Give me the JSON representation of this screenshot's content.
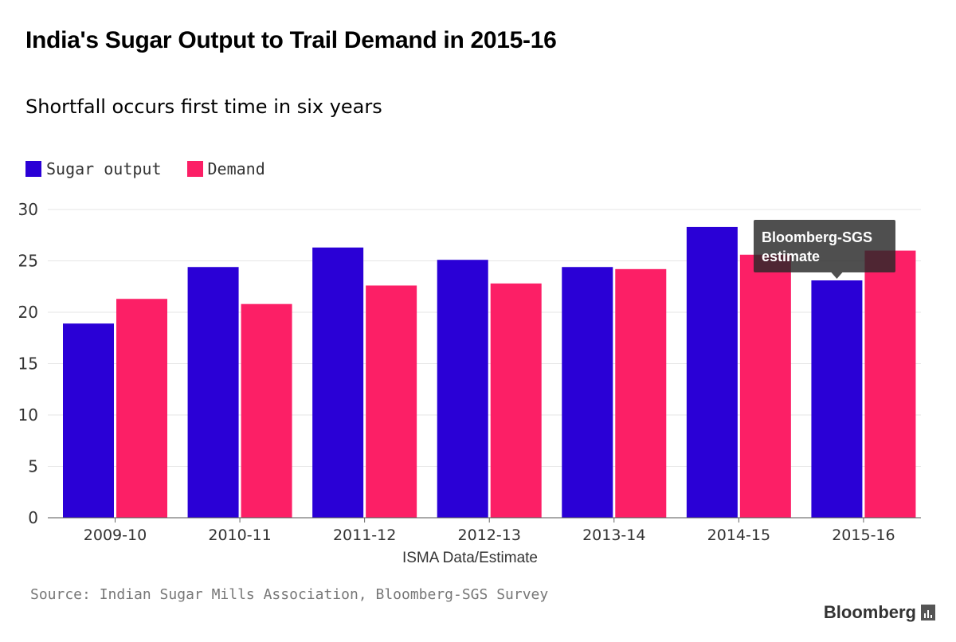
{
  "header": {
    "title": "India's Sugar Output to Trail Demand in 2015-16",
    "subtitle": "Shortfall occurs first time in six years"
  },
  "legend": [
    {
      "label": "Sugar output",
      "color": "#2a00d6"
    },
    {
      "label": "Demand",
      "color": "#fc1f66"
    }
  ],
  "chart_data": {
    "type": "bar",
    "title": "India's Sugar Output to Trail Demand in 2015-16",
    "subtitle": "Shortfall occurs first time in six years",
    "categories": [
      "2009-10",
      "2010-11",
      "2011-12",
      "2012-13",
      "2013-14",
      "2014-15",
      "2015-16"
    ],
    "series": [
      {
        "name": "Sugar output",
        "color": "#2a00d6",
        "values": [
          18.9,
          24.4,
          26.3,
          25.1,
          24.4,
          28.3,
          23.1
        ]
      },
      {
        "name": "Demand",
        "color": "#fc1f66",
        "values": [
          21.3,
          20.8,
          22.6,
          22.8,
          24.2,
          25.6,
          26.0
        ]
      }
    ],
    "xlabel": "ISMA Data/Estimate",
    "ylabel": "",
    "ylim": [
      0,
      30
    ],
    "yticks": [
      0,
      5,
      10,
      15,
      20,
      25,
      30
    ],
    "grid": true,
    "annotation": {
      "text_lines": [
        "Bloomberg-SGS",
        "estimate"
      ],
      "category": "2015-16",
      "series": "Sugar output"
    }
  },
  "footer": {
    "source": "Source: Indian Sugar Mills Association, Bloomberg-SGS Survey",
    "brand": "Bloomberg"
  }
}
